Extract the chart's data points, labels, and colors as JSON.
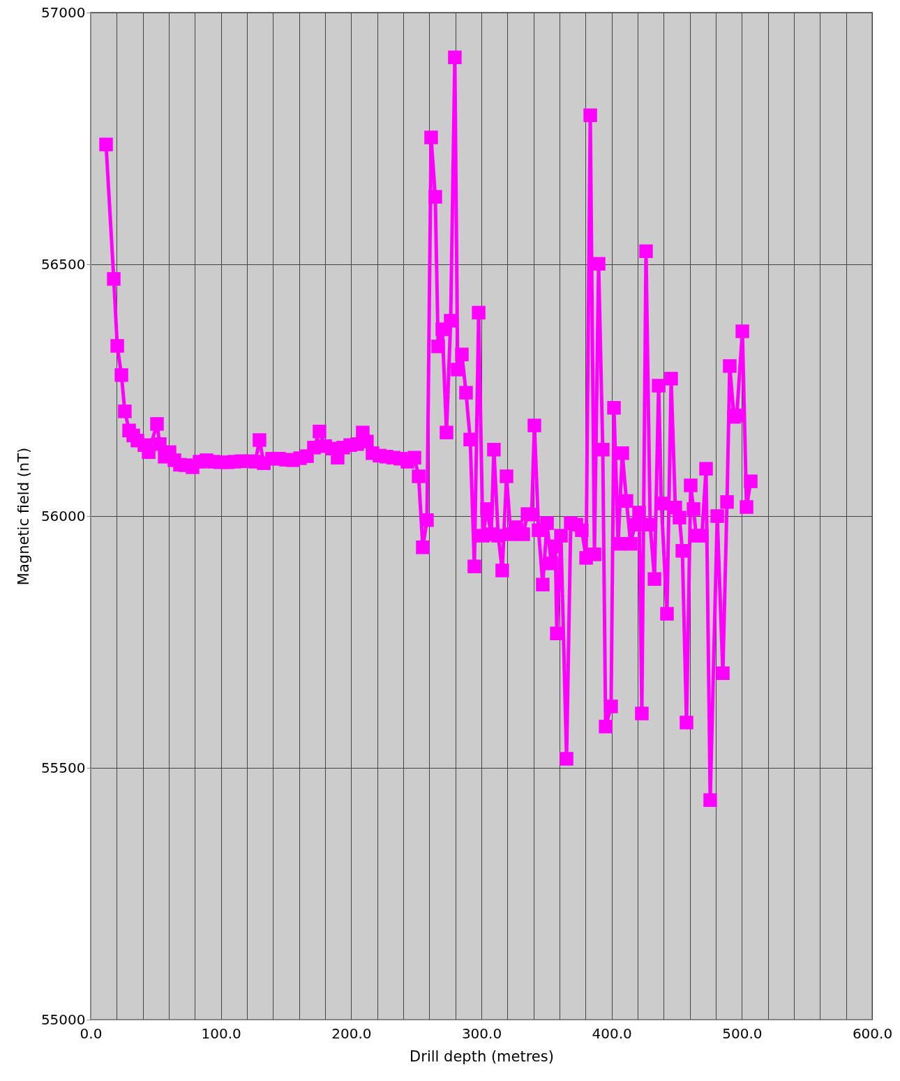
{
  "chart_data": {
    "type": "line",
    "xlabel": "Drill depth (metres)",
    "ylabel": "Magnetic field (nT)",
    "x": [
      11.8,
      17.7,
      20.4,
      23.6,
      26.2,
      29.5,
      32.7,
      35.9,
      41.2,
      44.5,
      50.9,
      53,
      56.8,
      60.5,
      64.3,
      68.6,
      72.9,
      78.2,
      83.6,
      88.9,
      94.3,
      99.6,
      105,
      110.4,
      115.7,
      121.1,
      126.4,
      129.6,
      132.9,
      139.3,
      144.6,
      150,
      155.4,
      160.7,
      166.1,
      171.4,
      175.7,
      180,
      185.4,
      189.6,
      193.9,
      199.3,
      204.6,
      208.9,
      212.1,
      216.4,
      221.8,
      227.1,
      232.5,
      237.9,
      243.2,
      248.6,
      251.8,
      255,
      258.2,
      261.4,
      264.6,
      266.8,
      270,
      273.2,
      276.4,
      279.6,
      281.8,
      285,
      288.2,
      291.4,
      294.6,
      297.9,
      301.1,
      304.3,
      307.5,
      309.6,
      312.9,
      316,
      319.3,
      322.5,
      326.8,
      332.1,
      335.4,
      338.6,
      340.7,
      343.9,
      347.1,
      350.4,
      353.6,
      356.8,
      357.9,
      361.1,
      365.4,
      368.6,
      372.9,
      377.1,
      380.4,
      383.6,
      386.8,
      390,
      393.2,
      395.4,
      399.6,
      401.8,
      405,
      408.2,
      411.4,
      414.6,
      417.9,
      421.1,
      423.2,
      426.4,
      429.6,
      432.9,
      436.1,
      438.2,
      442.5,
      445.7,
      448.9,
      452.1,
      454.3,
      457.5,
      460.7,
      462.9,
      465,
      469.3,
      472.5,
      475.7,
      481.1,
      485.4,
      488.6,
      490.7,
      493.9,
      496.1,
      500.4,
      503.6,
      506.8
    ],
    "series": [
      {
        "color": "#ff00ff",
        "values": [
          56738,
          56471,
          56338,
          56280,
          56208,
          56170,
          56160,
          56150,
          56141,
          56127,
          56183,
          56143,
          56118,
          56127,
          56111,
          56102,
          56101,
          56097,
          56108,
          56111,
          56108,
          56107,
          56107,
          56108,
          56109,
          56109,
          56108,
          56151,
          56105,
          56114,
          56114,
          56112,
          56111,
          56115,
          56119,
          56136,
          56168,
          56139,
          56134,
          56116,
          56136,
          56141,
          56143,
          56166,
          56148,
          56125,
          56120,
          56118,
          56116,
          56114,
          56108,
          56116,
          56079,
          55938,
          55992,
          56752,
          56634,
          56337,
          56371,
          56166,
          56388,
          56911,
          56291,
          56321,
          56245,
          56152,
          55900,
          56404,
          55961,
          56014,
          55964,
          56132,
          55961,
          55892,
          56079,
          55964,
          55978,
          55964,
          56004,
          56003,
          56180,
          55972,
          55864,
          55986,
          55906,
          55940,
          55767,
          55961,
          55518,
          55986,
          55983,
          55972,
          55917,
          56796,
          55924,
          56501,
          56132,
          55582,
          55622,
          56215,
          55945,
          56125,
          56030,
          55945,
          55983,
          56007,
          55608,
          56526,
          55983,
          55875,
          56259,
          56025,
          55806,
          56273,
          56017,
          55997,
          55931,
          55590,
          56061,
          56014,
          55961,
          55961,
          56094,
          55436,
          56000,
          55688,
          56028,
          56298,
          56197,
          56200,
          56367,
          56018,
          56069
        ]
      }
    ],
    "xlim": [
      0,
      600
    ],
    "xticks": [
      {
        "value": 0,
        "label": "0.0"
      },
      {
        "value": 20,
        "label": null
      },
      {
        "value": 40,
        "label": null
      },
      {
        "value": 60,
        "label": null
      },
      {
        "value": 80,
        "label": null
      },
      {
        "value": 100,
        "label": "100.0"
      },
      {
        "value": 120,
        "label": null
      },
      {
        "value": 140,
        "label": null
      },
      {
        "value": 160,
        "label": null
      },
      {
        "value": 180,
        "label": null
      },
      {
        "value": 200,
        "label": "200.0"
      },
      {
        "value": 220,
        "label": null
      },
      {
        "value": 240,
        "label": null
      },
      {
        "value": 260,
        "label": null
      },
      {
        "value": 280,
        "label": null
      },
      {
        "value": 300,
        "label": "300.0"
      },
      {
        "value": 320,
        "label": null
      },
      {
        "value": 340,
        "label": null
      },
      {
        "value": 360,
        "label": null
      },
      {
        "value": 380,
        "label": null
      },
      {
        "value": 400,
        "label": "400.0"
      },
      {
        "value": 420,
        "label": null
      },
      {
        "value": 440,
        "label": null
      },
      {
        "value": 460,
        "label": null
      },
      {
        "value": 480,
        "label": null
      },
      {
        "value": 500,
        "label": "500.0"
      },
      {
        "value": 520,
        "label": null
      },
      {
        "value": 540,
        "label": null
      },
      {
        "value": 560,
        "label": null
      },
      {
        "value": 580,
        "label": null
      },
      {
        "value": 600,
        "label": "600.0"
      }
    ],
    "ylim": [
      55000,
      57000
    ],
    "yticks": [
      55000,
      55500,
      56000,
      56500,
      57000
    ],
    "grid": true,
    "marker": "square",
    "line_style": "solid"
  }
}
